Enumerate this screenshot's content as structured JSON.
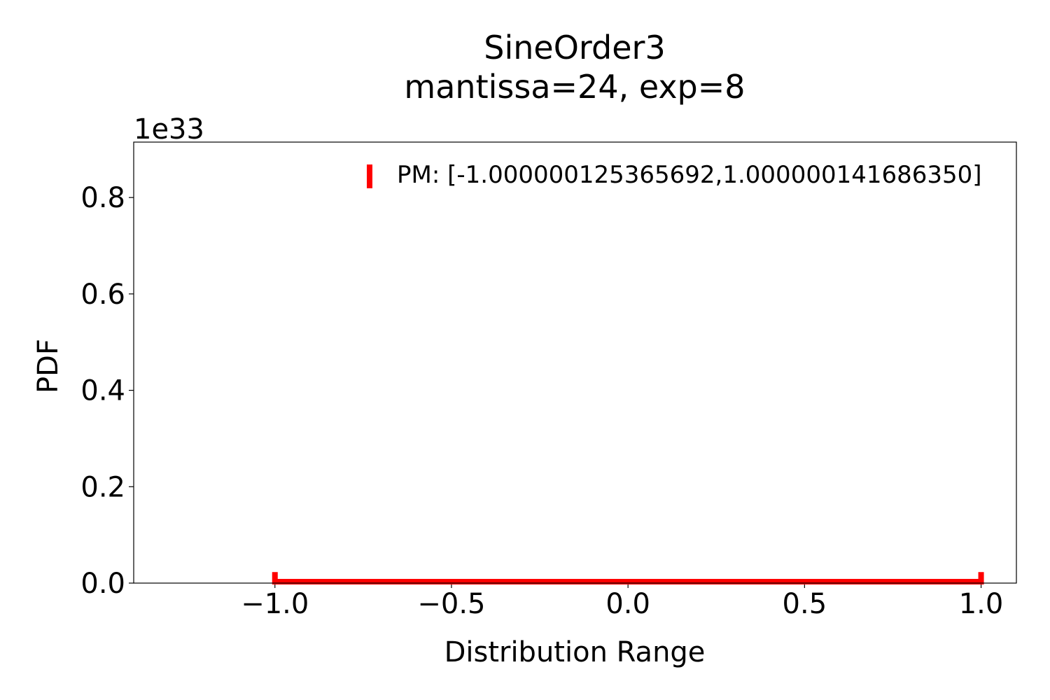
{
  "chart_data": {
    "type": "line",
    "title_lines": [
      "SineOrder3",
      "mantissa=24, exp=8"
    ],
    "xlabel": "Distribution Range",
    "ylabel": "PDF",
    "y_offset_label": "1e33",
    "xlim": [
      -1.4,
      1.1
    ],
    "ylim": [
      0,
      0.915
    ],
    "x_ticks": [
      -1.0,
      -0.5,
      0.0,
      0.5,
      1.0
    ],
    "x_tick_labels": [
      "−1.0",
      "−0.5",
      "0.0",
      "0.5",
      "1.0"
    ],
    "y_ticks": [
      0.0,
      0.2,
      0.4,
      0.6,
      0.8
    ],
    "y_tick_labels": [
      "0.0",
      "0.2",
      "0.4",
      "0.6",
      "0.8"
    ],
    "grid": false,
    "legend_position": "top-right",
    "series": [
      {
        "name": "PM: [-1.000000125365692,1.000000141686350]",
        "color": "#ff0000",
        "x": [
          -1.000000125365692,
          -1.000000125365692,
          1.00000014168635,
          1.00000014168635
        ],
        "y": [
          0.02,
          0.0,
          0.0,
          0.02
        ]
      }
    ]
  }
}
